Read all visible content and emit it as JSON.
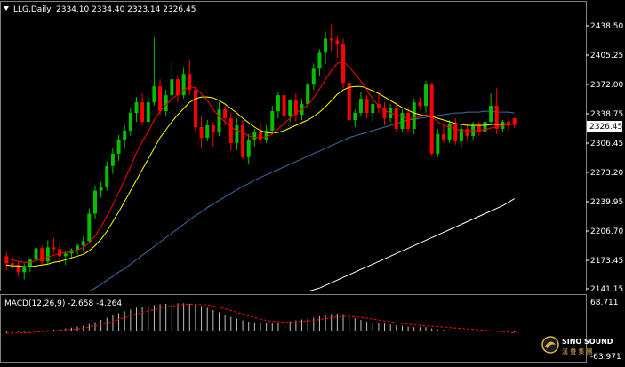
{
  "header": {
    "symbol": "LLG,Daily",
    "ohlc": "2334.10 2334.40 2323.14 2326.45"
  },
  "price_axis": {
    "ticks": [
      "2438.50",
      "2405.25",
      "2372.00",
      "2338.75",
      "2306.45",
      "2273.20",
      "2239.95",
      "2206.70",
      "2173.45",
      "2141.15"
    ],
    "current": "2326.45"
  },
  "macd": {
    "label": "MACD(12,26,9) -2.658 -4.264",
    "top_value": "68.711",
    "bottom_value": "-63.971"
  },
  "logo": {
    "name": "SINO SOUND",
    "sub": "漢 聲 集 團"
  },
  "colors": {
    "background": "#000000",
    "bull": "#00c000",
    "bear": "#ff0000",
    "ma_fast": "#ff0000",
    "ma_mid": "#ffff00",
    "ma_slow": "#3a6ea5",
    "ma_long": "#ffffff",
    "signal": "#ff0000"
  },
  "chart_data": {
    "type": "candlestick",
    "timeframe": "Daily",
    "ylim": [
      2141.15,
      2445
    ],
    "candles": [
      [
        2178,
        2183,
        2162,
        2170
      ],
      [
        2170,
        2177,
        2163,
        2168
      ],
      [
        2168,
        2172,
        2155,
        2160
      ],
      [
        2160,
        2170,
        2152,
        2166
      ],
      [
        2166,
        2176,
        2160,
        2174
      ],
      [
        2174,
        2192,
        2170,
        2187
      ],
      [
        2187,
        2190,
        2168,
        2172
      ],
      [
        2172,
        2196,
        2169,
        2188
      ],
      [
        2188,
        2198,
        2182,
        2186
      ],
      [
        2186,
        2191,
        2170,
        2178
      ],
      [
        2178,
        2184,
        2168,
        2181
      ],
      [
        2181,
        2187,
        2176,
        2185
      ],
      [
        2185,
        2192,
        2180,
        2190
      ],
      [
        2190,
        2200,
        2184,
        2195
      ],
      [
        2195,
        2232,
        2193,
        2226
      ],
      [
        2226,
        2258,
        2220,
        2252
      ],
      [
        2252,
        2262,
        2244,
        2256
      ],
      [
        2256,
        2285,
        2252,
        2280
      ],
      [
        2280,
        2300,
        2271,
        2294
      ],
      [
        2294,
        2315,
        2286,
        2310
      ],
      [
        2310,
        2326,
        2300,
        2320
      ],
      [
        2320,
        2345,
        2314,
        2340
      ],
      [
        2340,
        2358,
        2330,
        2352
      ],
      [
        2352,
        2362,
        2326,
        2330
      ],
      [
        2330,
        2358,
        2326,
        2352
      ],
      [
        2352,
        2425,
        2348,
        2370
      ],
      [
        2370,
        2378,
        2338,
        2342
      ],
      [
        2342,
        2366,
        2336,
        2360
      ],
      [
        2360,
        2398,
        2352,
        2378
      ],
      [
        2378,
        2382,
        2352,
        2360
      ],
      [
        2360,
        2392,
        2356,
        2384
      ],
      [
        2384,
        2400,
        2360,
        2366
      ],
      [
        2366,
        2370,
        2318,
        2324
      ],
      [
        2324,
        2336,
        2300,
        2312
      ],
      [
        2312,
        2332,
        2308,
        2326
      ],
      [
        2326,
        2330,
        2302,
        2318
      ],
      [
        2318,
        2352,
        2314,
        2344
      ],
      [
        2344,
        2348,
        2326,
        2334
      ],
      [
        2334,
        2340,
        2298,
        2306
      ],
      [
        2306,
        2334,
        2298,
        2326
      ],
      [
        2326,
        2332,
        2288,
        2290
      ],
      [
        2290,
        2316,
        2282,
        2310
      ],
      [
        2310,
        2322,
        2302,
        2318
      ],
      [
        2318,
        2328,
        2306,
        2310
      ],
      [
        2310,
        2326,
        2306,
        2320
      ],
      [
        2320,
        2348,
        2316,
        2342
      ],
      [
        2342,
        2364,
        2334,
        2360
      ],
      [
        2360,
        2366,
        2330,
        2336
      ],
      [
        2336,
        2356,
        2330,
        2354
      ],
      [
        2354,
        2362,
        2330,
        2338
      ],
      [
        2338,
        2356,
        2332,
        2350
      ],
      [
        2350,
        2376,
        2346,
        2372
      ],
      [
        2372,
        2396,
        2366,
        2390
      ],
      [
        2390,
        2412,
        2382,
        2408
      ],
      [
        2408,
        2432,
        2396,
        2424
      ],
      [
        2424,
        2440,
        2410,
        2422
      ],
      [
        2422,
        2428,
        2402,
        2418
      ],
      [
        2418,
        2424,
        2368,
        2374
      ],
      [
        2374,
        2376,
        2328,
        2332
      ],
      [
        2332,
        2344,
        2324,
        2340
      ],
      [
        2340,
        2364,
        2336,
        2356
      ],
      [
        2356,
        2360,
        2334,
        2340
      ],
      [
        2340,
        2354,
        2330,
        2350
      ],
      [
        2350,
        2362,
        2340,
        2346
      ],
      [
        2346,
        2352,
        2326,
        2334
      ],
      [
        2334,
        2350,
        2330,
        2346
      ],
      [
        2346,
        2352,
        2318,
        2322
      ],
      [
        2322,
        2344,
        2318,
        2340
      ],
      [
        2340,
        2346,
        2318,
        2322
      ],
      [
        2322,
        2356,
        2316,
        2352
      ],
      [
        2352,
        2358,
        2344,
        2348
      ],
      [
        2348,
        2376,
        2340,
        2372
      ],
      [
        2372,
        2374,
        2292,
        2294
      ],
      [
        2294,
        2322,
        2290,
        2316
      ],
      [
        2316,
        2326,
        2306,
        2310
      ],
      [
        2310,
        2332,
        2306,
        2328
      ],
      [
        2328,
        2334,
        2304,
        2308
      ],
      [
        2308,
        2326,
        2300,
        2322
      ],
      [
        2322,
        2328,
        2310,
        2314
      ],
      [
        2314,
        2330,
        2310,
        2326
      ],
      [
        2326,
        2330,
        2314,
        2318
      ],
      [
        2318,
        2332,
        2314,
        2330
      ],
      [
        2330,
        2362,
        2326,
        2348
      ],
      [
        2348,
        2368,
        2316,
        2322
      ],
      [
        2322,
        2332,
        2318,
        2330
      ],
      [
        2330,
        2334,
        2320,
        2326
      ],
      [
        2334.1,
        2334.4,
        2323.14,
        2326.45
      ]
    ],
    "ma_fast": [
      2175,
      2174,
      2172,
      2171,
      2171,
      2173,
      2175,
      2177,
      2179,
      2181,
      2182,
      2183,
      2185,
      2188,
      2193,
      2201,
      2211,
      2223,
      2236,
      2250,
      2264,
      2279,
      2295,
      2308,
      2319,
      2332,
      2342,
      2349,
      2356,
      2361,
      2366,
      2370,
      2368,
      2362,
      2354,
      2344,
      2336,
      2330,
      2324,
      2320,
      2318,
      2314,
      2312,
      2312,
      2313,
      2316,
      2322,
      2328,
      2334,
      2340,
      2344,
      2349,
      2357,
      2367,
      2378,
      2388,
      2396,
      2398,
      2392,
      2384,
      2376,
      2366,
      2356,
      2348,
      2343,
      2340,
      2338,
      2336,
      2334,
      2334,
      2336,
      2338,
      2336,
      2330,
      2326,
      2324,
      2322,
      2320,
      2320,
      2320,
      2320,
      2321,
      2323,
      2324,
      2326,
      2327,
      2327
    ],
    "ma_mid": [
      2168,
      2167,
      2167,
      2166,
      2166,
      2167,
      2168,
      2169,
      2171,
      2172,
      2174,
      2176,
      2178,
      2180,
      2184,
      2190,
      2197,
      2206,
      2217,
      2228,
      2240,
      2252,
      2264,
      2276,
      2288,
      2300,
      2312,
      2321,
      2330,
      2338,
      2345,
      2352,
      2356,
      2358,
      2358,
      2357,
      2354,
      2350,
      2345,
      2340,
      2334,
      2329,
      2324,
      2320,
      2318,
      2317,
      2318,
      2320,
      2323,
      2326,
      2329,
      2332,
      2336,
      2341,
      2347,
      2354,
      2361,
      2366,
      2369,
      2370,
      2370,
      2368,
      2365,
      2362,
      2358,
      2354,
      2350,
      2346,
      2343,
      2340,
      2338,
      2337,
      2336,
      2334,
      2332,
      2330,
      2328,
      2327,
      2326,
      2326,
      2326,
      2326,
      2327,
      2327,
      2327,
      2327,
      2327
    ],
    "ma_slow": [
      2090,
      2093,
      2096,
      2099,
      2102,
      2105,
      2108,
      2112,
      2115,
      2119,
      2122,
      2126,
      2130,
      2134,
      2138,
      2142,
      2146,
      2151,
      2155,
      2160,
      2164,
      2169,
      2174,
      2179,
      2184,
      2189,
      2194,
      2199,
      2204,
      2209,
      2214,
      2219,
      2224,
      2228,
      2233,
      2237,
      2241,
      2245,
      2249,
      2253,
      2257,
      2260,
      2264,
      2267,
      2270,
      2273,
      2276,
      2279,
      2282,
      2285,
      2288,
      2291,
      2294,
      2297,
      2300,
      2303,
      2306,
      2309,
      2312,
      2314,
      2316,
      2318,
      2320,
      2322,
      2324,
      2326,
      2328,
      2330,
      2332,
      2333,
      2334,
      2335,
      2336,
      2337,
      2338,
      2339,
      2340,
      2340,
      2341,
      2341,
      2341,
      2342,
      2342,
      2341,
      2341,
      2341,
      2340
    ],
    "ma_long": [
      2050,
      2051,
      2052,
      2053,
      2054,
      2055,
      2056,
      2057,
      2058,
      2059,
      2060,
      2061,
      2062,
      2063,
      2064,
      2066,
      2068,
      2070,
      2072,
      2074,
      2076,
      2078,
      2080,
      2082,
      2084,
      2086,
      2088,
      2090,
      2092,
      2094,
      2096,
      2098,
      2100,
      2102,
      2104,
      2106,
      2108,
      2110,
      2112,
      2114,
      2116,
      2118,
      2120,
      2122,
      2124,
      2126,
      2128,
      2130,
      2132,
      2134,
      2136,
      2138,
      2140,
      2142,
      2145,
      2148,
      2151,
      2154,
      2157,
      2160,
      2163,
      2166,
      2169,
      2172,
      2175,
      2178,
      2181,
      2184,
      2187,
      2190,
      2193,
      2196,
      2199,
      2202,
      2205,
      2208,
      2211,
      2214,
      2217,
      2220,
      2223,
      2226,
      2229,
      2232,
      2235,
      2239,
      2243
    ],
    "macd_ylim": [
      -63.971,
      68.711
    ],
    "macd_hist": [
      -4,
      -3,
      -2,
      -2,
      -1,
      0,
      1,
      2,
      3,
      4,
      6,
      8,
      10,
      12,
      16,
      20,
      25,
      30,
      35,
      40,
      44,
      48,
      52,
      54,
      56,
      58,
      60,
      61,
      62,
      62,
      62,
      61,
      59,
      56,
      52,
      47,
      42,
      37,
      32,
      28,
      24,
      21,
      19,
      18,
      17,
      17,
      18,
      20,
      22,
      24,
      26,
      28,
      30,
      33,
      36,
      38,
      39,
      38,
      34,
      29,
      25,
      21,
      19,
      18,
      17,
      15,
      13,
      12,
      10,
      9,
      9,
      9,
      6,
      4,
      3,
      2,
      1,
      0,
      -1,
      -1,
      -1,
      -1,
      0,
      -1,
      -1,
      -2,
      -2.658
    ],
    "macd_signal": [
      -5,
      -4.5,
      -4,
      -3.5,
      -3,
      -2,
      -1,
      0,
      1,
      2,
      3,
      4,
      5,
      7,
      9,
      12,
      15,
      18,
      22,
      26,
      30,
      34,
      38,
      42,
      45,
      48,
      51,
      54,
      56,
      58,
      59,
      60,
      60,
      59,
      58,
      56,
      53,
      50,
      46,
      42,
      38,
      34,
      30,
      27,
      24,
      22,
      21,
      20,
      20,
      21,
      22,
      23,
      24,
      26,
      28,
      30,
      32,
      33,
      33,
      32,
      31,
      29,
      27,
      25,
      23,
      21,
      19,
      17,
      16,
      14,
      13,
      12,
      11,
      10,
      9,
      8,
      7,
      6,
      5,
      4,
      3,
      2,
      1,
      0,
      -1,
      -2,
      -4.264
    ]
  }
}
